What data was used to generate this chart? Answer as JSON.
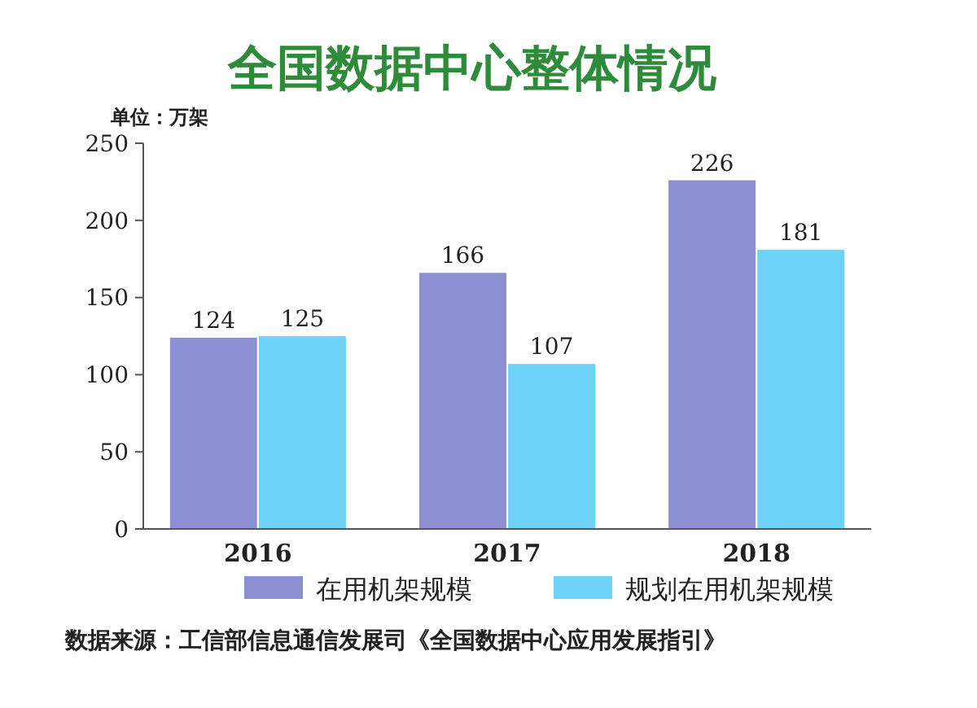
{
  "chart_data": {
    "type": "bar",
    "title": "全国数据中心整体情况",
    "categories": [
      "2016",
      "2017",
      "2018"
    ],
    "series": [
      {
        "name": "在用机架规模",
        "color": "#8c8fd2",
        "values": [
          124,
          166,
          226
        ]
      },
      {
        "name": "规划在用机架规模",
        "color": "#6fd3f7",
        "values": [
          125,
          107,
          181
        ]
      }
    ],
    "ylim": [
      0,
      250
    ],
    "yticks": [
      0,
      50,
      100,
      150,
      200,
      250
    ],
    "grid": false,
    "legend": "bottom",
    "data_labels": true,
    "annotations": [
      "单位：万架",
      "数据来源：工信部信息通信发展司《全国数据中心应用发展指引》"
    ]
  }
}
